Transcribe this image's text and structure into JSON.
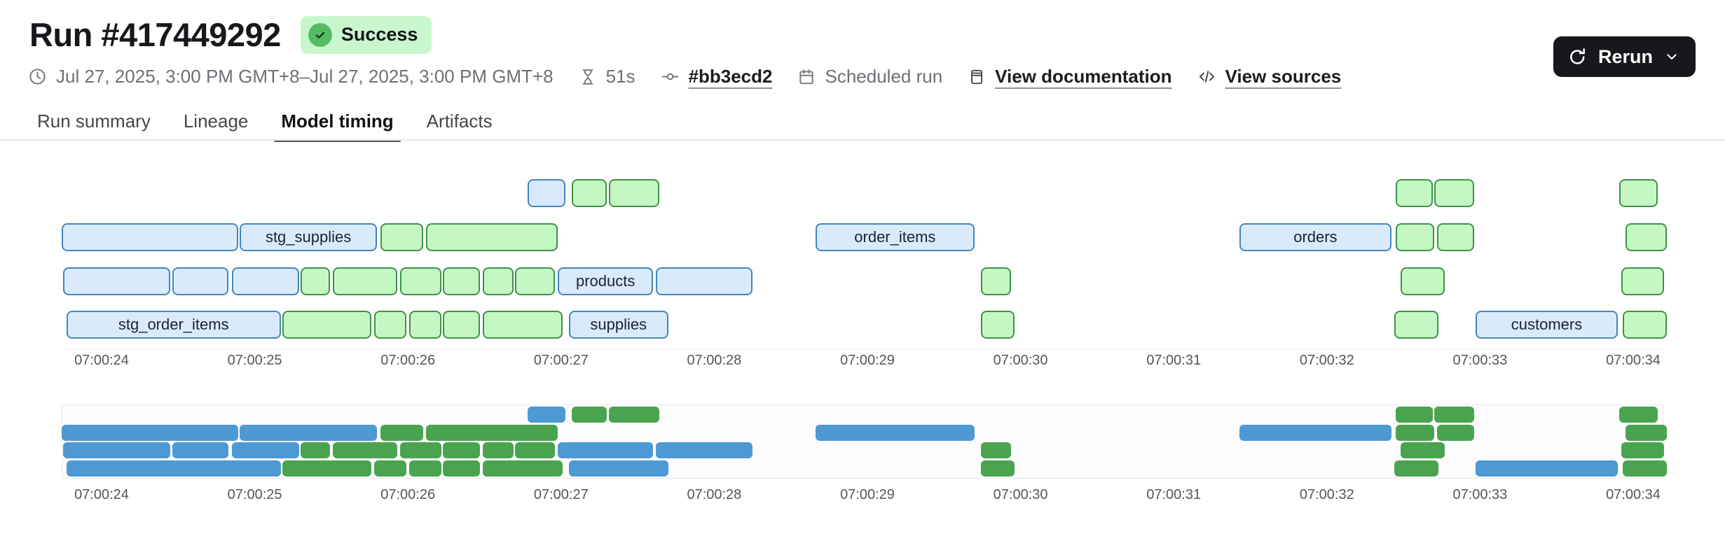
{
  "header": {
    "title": "Run #417449292",
    "status_badge": "Success",
    "meta": {
      "time_range": "Jul 27, 2025, 3:00 PM GMT+8–Jul 27, 2025, 3:00 PM GMT+8",
      "duration": "51s",
      "commit_ref": "#bb3ecd2",
      "run_type": "Scheduled run",
      "view_documentation": "View documentation",
      "view_sources": "View sources"
    },
    "rerun": {
      "label": "Rerun"
    },
    "icons": {
      "status": "check-circle-icon",
      "time_range": "clock-icon",
      "duration": "hourglass-icon",
      "commit": "git-commit-icon",
      "run_type": "calendar-icon",
      "documentation": "book-icon",
      "sources": "code-icon",
      "rerun": "refresh-icon",
      "rerun_menu": "chevron-down-icon"
    },
    "colors": {
      "badge_bg": "#c9f7cd",
      "badge_dot": "#55bc66",
      "rerun_bg": "#17171c"
    }
  },
  "tabs": [
    {
      "label": "Run summary",
      "active": false
    },
    {
      "label": "Lineage",
      "active": false
    },
    {
      "label": "Model timing",
      "active": true
    },
    {
      "label": "Artifacts",
      "active": false
    }
  ],
  "chart_data": {
    "type": "gantt",
    "title": "Model timing gantt with overview strip",
    "x_axis": {
      "tick_labels": [
        "07:00:24",
        "07:00:25",
        "07:00:26",
        "07:00:27",
        "07:00:28",
        "07:00:29",
        "07:00:30",
        "07:00:31",
        "07:00:32",
        "07:00:33",
        "07:00:34"
      ],
      "tick_seconds": [
        0,
        1,
        2,
        3,
        4,
        5,
        6,
        7,
        8,
        9,
        10
      ],
      "origin_label": "07:00:24"
    },
    "row_count": 4,
    "colors": {
      "main_blue_fill": "#d9eafb",
      "main_blue_border": "#4187bf",
      "main_green_fill": "#c5f7c3",
      "main_green_border": "#3e9347",
      "mini_blue": "#4c99d3",
      "mini_green": "#4aa44f"
    },
    "bars": [
      {
        "row": 1,
        "start": 2.78,
        "end": 3.03,
        "kind": "blue",
        "label": ""
      },
      {
        "row": 1,
        "start": 3.07,
        "end": 3.3,
        "kind": "green",
        "label": ""
      },
      {
        "row": 1,
        "start": 3.31,
        "end": 3.64,
        "kind": "green",
        "label": ""
      },
      {
        "row": 1,
        "start": 8.45,
        "end": 8.69,
        "kind": "green",
        "label": ""
      },
      {
        "row": 1,
        "start": 8.7,
        "end": 8.96,
        "kind": "green",
        "label": ""
      },
      {
        "row": 1,
        "start": 9.91,
        "end": 10.16,
        "kind": "green",
        "label": ""
      },
      {
        "row": 2,
        "start": -0.26,
        "end": 0.89,
        "kind": "blue",
        "label": ""
      },
      {
        "row": 2,
        "start": 0.9,
        "end": 1.8,
        "kind": "blue",
        "label": "stg_supplies"
      },
      {
        "row": 2,
        "start": 1.82,
        "end": 2.1,
        "kind": "green",
        "label": ""
      },
      {
        "row": 2,
        "start": 2.12,
        "end": 2.98,
        "kind": "green",
        "label": ""
      },
      {
        "row": 2,
        "start": 4.66,
        "end": 5.7,
        "kind": "blue",
        "label": "order_items"
      },
      {
        "row": 2,
        "start": 7.43,
        "end": 8.42,
        "kind": "blue",
        "label": "orders"
      },
      {
        "row": 2,
        "start": 8.45,
        "end": 8.7,
        "kind": "green",
        "label": ""
      },
      {
        "row": 2,
        "start": 8.72,
        "end": 8.96,
        "kind": "green",
        "label": ""
      },
      {
        "row": 2,
        "start": 9.95,
        "end": 10.22,
        "kind": "green",
        "label": ""
      },
      {
        "row": 3,
        "start": -0.25,
        "end": 0.45,
        "kind": "blue",
        "label": ""
      },
      {
        "row": 3,
        "start": 0.46,
        "end": 0.83,
        "kind": "blue",
        "label": ""
      },
      {
        "row": 3,
        "start": 0.85,
        "end": 1.29,
        "kind": "blue",
        "label": ""
      },
      {
        "row": 3,
        "start": 1.3,
        "end": 1.49,
        "kind": "green",
        "label": ""
      },
      {
        "row": 3,
        "start": 1.51,
        "end": 1.93,
        "kind": "green",
        "label": ""
      },
      {
        "row": 3,
        "start": 1.95,
        "end": 2.22,
        "kind": "green",
        "label": ""
      },
      {
        "row": 3,
        "start": 2.23,
        "end": 2.47,
        "kind": "green",
        "label": ""
      },
      {
        "row": 3,
        "start": 2.49,
        "end": 2.69,
        "kind": "green",
        "label": ""
      },
      {
        "row": 3,
        "start": 2.7,
        "end": 2.96,
        "kind": "green",
        "label": ""
      },
      {
        "row": 3,
        "start": 2.98,
        "end": 3.6,
        "kind": "blue",
        "label": "products"
      },
      {
        "row": 3,
        "start": 3.62,
        "end": 4.25,
        "kind": "blue",
        "label": ""
      },
      {
        "row": 3,
        "start": 5.74,
        "end": 5.94,
        "kind": "green",
        "label": ""
      },
      {
        "row": 3,
        "start": 8.48,
        "end": 8.77,
        "kind": "green",
        "label": ""
      },
      {
        "row": 3,
        "start": 9.92,
        "end": 10.2,
        "kind": "green",
        "label": ""
      },
      {
        "row": 4,
        "start": -0.23,
        "end": 1.17,
        "kind": "blue",
        "label": "stg_order_items"
      },
      {
        "row": 4,
        "start": 1.18,
        "end": 1.76,
        "kind": "green",
        "label": ""
      },
      {
        "row": 4,
        "start": 1.78,
        "end": 1.99,
        "kind": "green",
        "label": ""
      },
      {
        "row": 4,
        "start": 2.01,
        "end": 2.22,
        "kind": "green",
        "label": ""
      },
      {
        "row": 4,
        "start": 2.23,
        "end": 2.47,
        "kind": "green",
        "label": ""
      },
      {
        "row": 4,
        "start": 2.49,
        "end": 3.01,
        "kind": "green",
        "label": ""
      },
      {
        "row": 4,
        "start": 3.05,
        "end": 3.7,
        "kind": "blue",
        "label": "supplies"
      },
      {
        "row": 4,
        "start": 5.74,
        "end": 5.96,
        "kind": "green",
        "label": ""
      },
      {
        "row": 4,
        "start": 8.44,
        "end": 8.73,
        "kind": "green",
        "label": ""
      },
      {
        "row": 4,
        "start": 8.97,
        "end": 9.9,
        "kind": "blue",
        "label": "customers"
      },
      {
        "row": 4,
        "start": 9.93,
        "end": 10.22,
        "kind": "green",
        "label": ""
      }
    ]
  }
}
